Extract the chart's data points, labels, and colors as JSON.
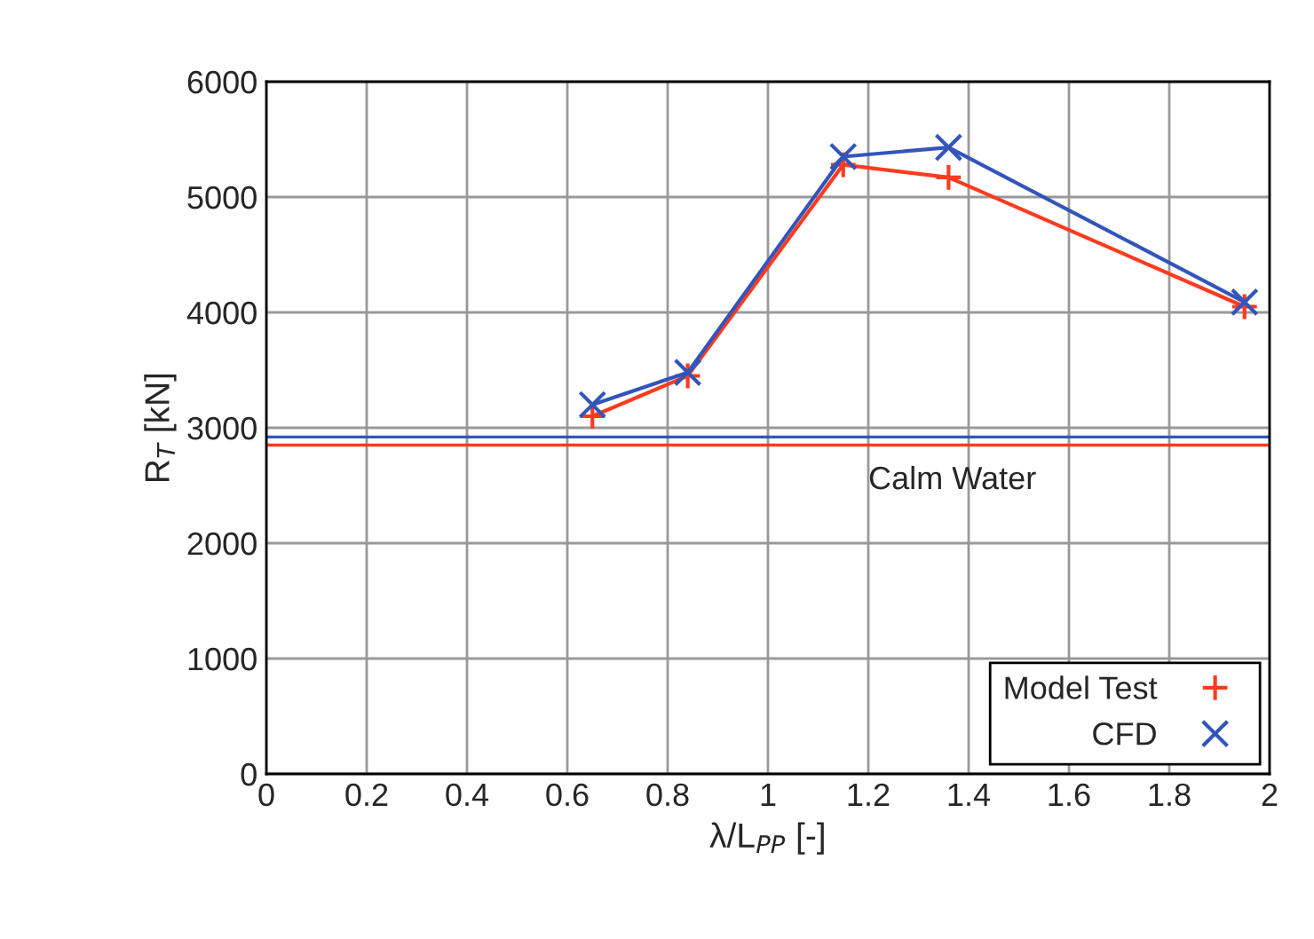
{
  "chart_data": {
    "type": "line",
    "xlabel": "λ/L$_{PP}$ [-]",
    "ylabel": "R$_{T}$ [kN]",
    "x": [
      0.65,
      0.84,
      1.15,
      1.36,
      1.95
    ],
    "series": [
      {
        "name": "Model Test",
        "color": "#ff3b1f",
        "marker": "plus",
        "values": [
          3100,
          3450,
          5280,
          5170,
          4050
        ]
      },
      {
        "name": "CFD",
        "color": "#3355bb",
        "marker": "cross",
        "values": [
          3200,
          3480,
          5350,
          5430,
          4090
        ]
      }
    ],
    "ref_lines": [
      {
        "axis": "y",
        "value": 2850,
        "label": "Calm Water",
        "color": "#ff3b1f"
      },
      {
        "axis": "y",
        "value": 2920,
        "label": null,
        "color": "#3355bb"
      }
    ],
    "xlim": [
      0,
      2
    ],
    "xticks": [
      0,
      0.2,
      0.4,
      0.6,
      0.8,
      1,
      1.2,
      1.4,
      1.6,
      1.8,
      2
    ],
    "ylim": [
      0,
      6000
    ],
    "yticks": [
      0,
      1000,
      2000,
      3000,
      4000,
      5000,
      6000
    ],
    "grid": true,
    "legend": "bottom right"
  }
}
